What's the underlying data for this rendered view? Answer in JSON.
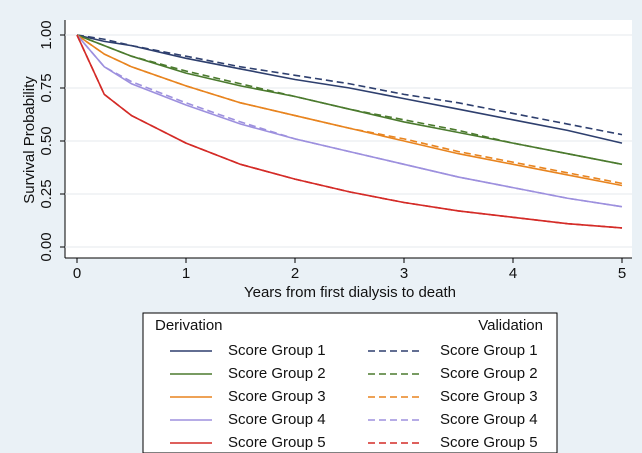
{
  "chart_data": {
    "type": "line",
    "x_label": "Years from first dialysis to death",
    "y_label": "Survival Probability",
    "x": [
      0,
      0.25,
      0.5,
      1,
      1.5,
      2,
      2.5,
      3,
      3.5,
      4,
      4.5,
      5
    ],
    "xlim": [
      0,
      5
    ],
    "xticks": [
      0,
      1,
      2,
      3,
      4,
      5
    ],
    "ylim": [
      0,
      1
    ],
    "yticks": [
      {
        "value": 0,
        "label": "0.00"
      },
      {
        "value": 0.25,
        "label": "0.25"
      },
      {
        "value": 0.5,
        "label": "0.50"
      },
      {
        "value": 0.75,
        "label": "0.75"
      },
      {
        "value": 1,
        "label": "1.00"
      }
    ],
    "grid": true,
    "legend_titles": [
      "Derivation",
      "Validation"
    ],
    "series": [
      {
        "name": "Score Group 1",
        "color": "#2e3f6e",
        "dashed": false,
        "values": [
          1,
          0.97,
          0.95,
          0.89,
          0.84,
          0.79,
          0.75,
          0.7,
          0.65,
          0.6,
          0.55,
          0.49
        ]
      },
      {
        "name": "Score Group 2",
        "color": "#4b7a2e",
        "dashed": false,
        "values": [
          1,
          0.95,
          0.9,
          0.82,
          0.76,
          0.71,
          0.65,
          0.59,
          0.54,
          0.49,
          0.44,
          0.39
        ]
      },
      {
        "name": "Score Group 3",
        "color": "#e8841f",
        "dashed": false,
        "values": [
          1,
          0.91,
          0.85,
          0.76,
          0.68,
          0.62,
          0.56,
          0.5,
          0.44,
          0.39,
          0.34,
          0.29
        ]
      },
      {
        "name": "Score Group 4",
        "color": "#9d90de",
        "dashed": false,
        "values": [
          1,
          0.85,
          0.77,
          0.67,
          0.58,
          0.51,
          0.45,
          0.39,
          0.33,
          0.28,
          0.23,
          0.19
        ]
      },
      {
        "name": "Score Group 5",
        "color": "#d42b27",
        "dashed": false,
        "values": [
          1,
          0.72,
          0.62,
          0.49,
          0.39,
          0.32,
          0.26,
          0.21,
          0.17,
          0.14,
          0.11,
          0.09
        ]
      },
      {
        "name": "Score Group 1",
        "color": "#2e3f6e",
        "dashed": true,
        "values": [
          1,
          0.98,
          0.95,
          0.9,
          0.85,
          0.81,
          0.77,
          0.72,
          0.68,
          0.63,
          0.58,
          0.53
        ]
      },
      {
        "name": "Score Group 2",
        "color": "#4b7a2e",
        "dashed": true,
        "values": [
          1,
          0.95,
          0.9,
          0.83,
          0.77,
          0.71,
          0.65,
          0.6,
          0.55,
          0.49,
          0.44,
          0.39
        ]
      },
      {
        "name": "Score Group 3",
        "color": "#e8841f",
        "dashed": true,
        "values": [
          1,
          0.91,
          0.85,
          0.76,
          0.68,
          0.62,
          0.56,
          0.51,
          0.45,
          0.4,
          0.35,
          0.3
        ]
      },
      {
        "name": "Score Group 4",
        "color": "#9d90de",
        "dashed": true,
        "values": [
          1,
          0.85,
          0.78,
          0.68,
          0.59,
          0.51,
          0.45,
          0.39,
          0.33,
          0.28,
          0.23,
          0.19
        ]
      },
      {
        "name": "Score Group 5",
        "color": "#d42b27",
        "dashed": true,
        "values": [
          1,
          0.72,
          0.62,
          0.49,
          0.39,
          0.32,
          0.26,
          0.21,
          0.17,
          0.14,
          0.11,
          0.09
        ]
      }
    ]
  }
}
